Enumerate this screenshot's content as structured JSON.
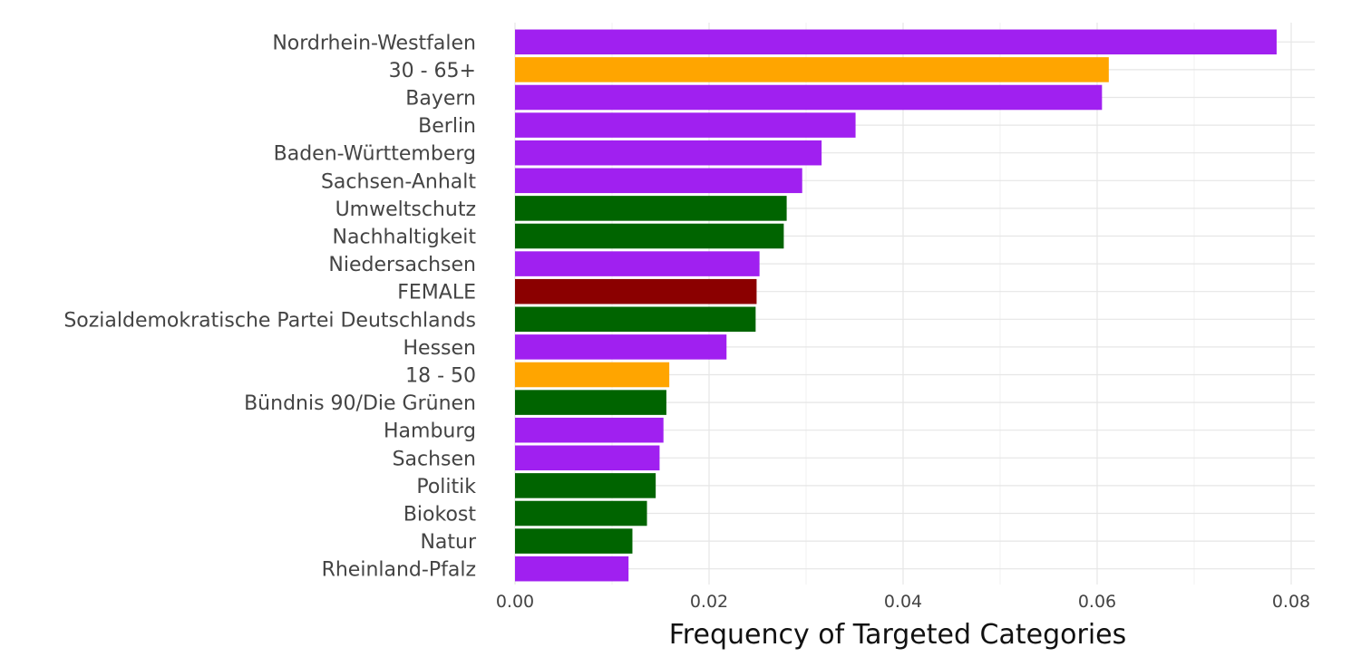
{
  "chart_data": {
    "type": "bar",
    "orientation": "horizontal",
    "xlabel": "Frequency of Targeted Categories",
    "ylabel": "",
    "xlim": [
      0,
      0.082
    ],
    "xticks": [
      0.0,
      0.02,
      0.04,
      0.06,
      0.08
    ],
    "xtick_labels": [
      "0.00",
      "0.02",
      "0.04",
      "0.06",
      "0.08"
    ],
    "grid": true,
    "legend": "none",
    "categories": [
      "Nordrhein-Westfalen",
      "30 - 65+",
      "Bayern",
      "Berlin",
      "Baden-Württemberg",
      "Sachsen-Anhalt",
      "Umweltschutz",
      "Nachhaltigkeit",
      "Niedersachsen",
      "FEMALE",
      "Sozialdemokratische Partei Deutschlands",
      "Hessen",
      "18 - 50",
      "Bündnis 90/Die Grünen",
      "Hamburg",
      "Sachsen",
      "Politik",
      "Biokost",
      "Natur",
      "Rheinland-Pfalz"
    ],
    "values": [
      0.0785,
      0.0612,
      0.0605,
      0.0351,
      0.0316,
      0.0296,
      0.028,
      0.0277,
      0.0252,
      0.0249,
      0.0248,
      0.0218,
      0.0159,
      0.0156,
      0.0153,
      0.0149,
      0.0145,
      0.0136,
      0.0121,
      0.0117
    ],
    "colors": [
      "#a020f0",
      "#ffa500",
      "#a020f0",
      "#a020f0",
      "#a020f0",
      "#a020f0",
      "#006400",
      "#006400",
      "#a020f0",
      "#8b0000",
      "#006400",
      "#a020f0",
      "#ffa500",
      "#006400",
      "#a020f0",
      "#a020f0",
      "#006400",
      "#006400",
      "#006400",
      "#a020f0"
    ]
  }
}
